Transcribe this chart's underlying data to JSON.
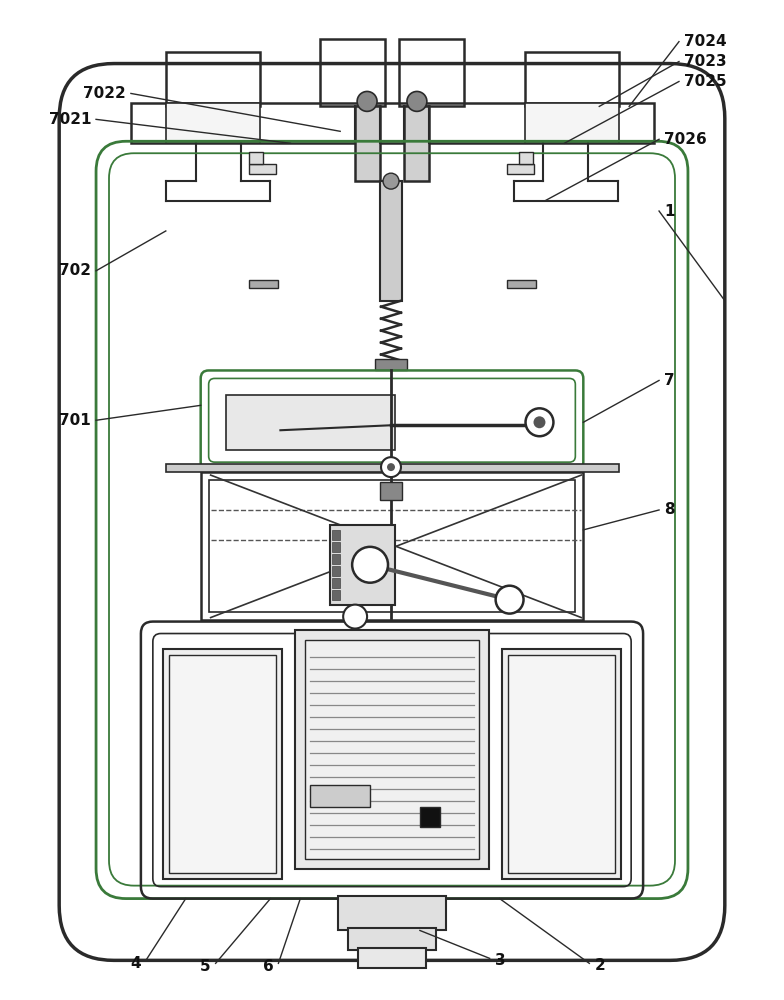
{
  "bg_color": "#ffffff",
  "lc": "#2a2a2a",
  "lc_green": "#3a7a3a",
  "fig_w": 7.84,
  "fig_h": 10.0,
  "dpi": 100
}
